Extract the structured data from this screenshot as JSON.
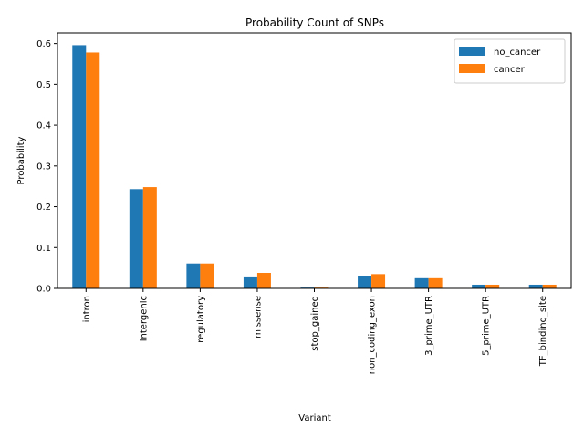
{
  "chart_data": {
    "type": "bar",
    "title": "Probability Count of SNPs",
    "xlabel": "Variant",
    "ylabel": "Probability",
    "categories": [
      "intron",
      "intergenic",
      "regulatory",
      "missense",
      "stop_gained",
      "non_coding_exon",
      "3_prime_UTR",
      "5_prime_UTR",
      "TF_binding_site"
    ],
    "series": [
      {
        "name": "no_cancer",
        "color": "#1f77b4",
        "values": [
          0.596,
          0.243,
          0.061,
          0.027,
          0.002,
          0.031,
          0.025,
          0.009,
          0.009
        ]
      },
      {
        "name": "cancer",
        "color": "#ff7f0e",
        "values": [
          0.578,
          0.248,
          0.061,
          0.038,
          0.002,
          0.035,
          0.025,
          0.009,
          0.009
        ]
      }
    ],
    "yticks": [
      0.0,
      0.1,
      0.2,
      0.3,
      0.4,
      0.5,
      0.6
    ],
    "ytick_labels": [
      "0.0",
      "0.1",
      "0.2",
      "0.3",
      "0.4",
      "0.5",
      "0.6"
    ],
    "ylim": [
      0,
      0.626
    ],
    "grid": false,
    "legend_position": "top-right"
  }
}
